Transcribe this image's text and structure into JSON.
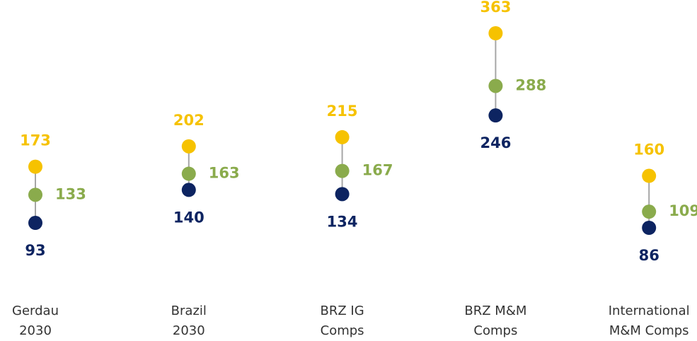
{
  "chart_data": {
    "type": "dumbbell",
    "categories": [
      "Gerdau\n2030",
      "Brazil\n2030",
      "BRZ IG\nComps",
      "BRZ M&M\nComps",
      "International\nM&M Comps"
    ],
    "series": [
      {
        "color": "#0d2461",
        "values": [
          93,
          140,
          134,
          246,
          86
        ]
      },
      {
        "color": "#8aab4c",
        "values": [
          133,
          163,
          167,
          288,
          109
        ]
      },
      {
        "color": "#f6c200",
        "values": [
          173,
          202,
          215,
          363,
          160
        ]
      }
    ]
  }
}
